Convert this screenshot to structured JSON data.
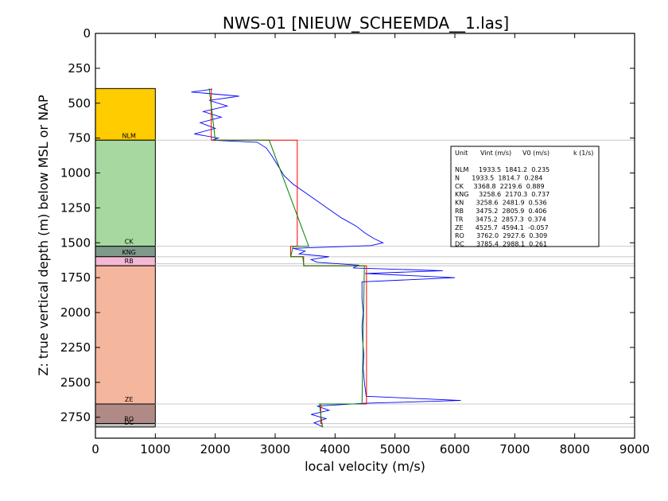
{
  "chart_data": {
    "type": "line",
    "title": "NWS-01 [NIEUW_SCHEEMDA__1.las]",
    "xlabel": "local velocity (m/s)",
    "ylabel": "Z: true vertical depth (m) below MSL or NAP",
    "xlim": [
      0,
      9000
    ],
    "ylim": [
      2900,
      0
    ],
    "x_ticks": [
      "0",
      "1000",
      "2000",
      "3000",
      "4000",
      "5000",
      "6000",
      "7000",
      "8000",
      "9000"
    ],
    "y_ticks": [
      "0",
      "250",
      "500",
      "750",
      "1000",
      "1250",
      "1500",
      "1750",
      "2000",
      "2250",
      "2500",
      "2750"
    ],
    "y_inverted": true,
    "grid": false,
    "strat_column": [
      {
        "code": "NLM",
        "top": 395,
        "base": 765,
        "color": "#ffcc00"
      },
      {
        "code": "CK",
        "top": 765,
        "base": 1525,
        "color": "#a6d8a0"
      },
      {
        "code": "KNG",
        "top": 1525,
        "base": 1600,
        "color": "#7f9a8b"
      },
      {
        "code": "RB",
        "top": 1600,
        "base": 1665,
        "color": "#f4b8d4"
      },
      {
        "code": "ZE",
        "top": 1665,
        "base": 2655,
        "color": "#f5b69e"
      },
      {
        "code": "RO",
        "top": 2655,
        "base": 2795,
        "color": "#b08a84"
      },
      {
        "code": "DC",
        "top": 2795,
        "base": 2820,
        "color": "#c0c0c0"
      }
    ],
    "horizon_lines": [
      765,
      1525,
      1600,
      1650,
      1665,
      2655,
      2795,
      2820
    ],
    "series": [
      {
        "color": "#0000ff",
        "kind": "log",
        "points": [
          [
            1950,
            400
          ],
          [
            1600,
            420
          ],
          [
            2400,
            450
          ],
          [
            1900,
            480
          ],
          [
            2200,
            520
          ],
          [
            1800,
            560
          ],
          [
            2100,
            600
          ],
          [
            1750,
            640
          ],
          [
            2000,
            680
          ],
          [
            1650,
            720
          ],
          [
            2050,
            750
          ],
          [
            1950,
            765
          ],
          [
            2700,
            780
          ],
          [
            2850,
            820
          ],
          [
            2950,
            880
          ],
          [
            3050,
            950
          ],
          [
            3150,
            1020
          ],
          [
            3300,
            1080
          ],
          [
            3500,
            1140
          ],
          [
            3700,
            1200
          ],
          [
            3900,
            1260
          ],
          [
            4100,
            1320
          ],
          [
            4350,
            1380
          ],
          [
            4500,
            1430
          ],
          [
            4650,
            1470
          ],
          [
            4800,
            1500
          ],
          [
            4600,
            1520
          ],
          [
            3300,
            1540
          ],
          [
            3500,
            1560
          ],
          [
            3400,
            1580
          ],
          [
            3900,
            1600
          ],
          [
            3600,
            1620
          ],
          [
            3700,
            1640
          ],
          [
            4400,
            1660
          ],
          [
            4300,
            1680
          ],
          [
            5800,
            1700
          ],
          [
            4500,
            1720
          ],
          [
            6000,
            1750
          ],
          [
            4450,
            1780
          ],
          [
            4450,
            1900
          ],
          [
            4470,
            2000
          ],
          [
            4450,
            2100
          ],
          [
            4460,
            2200
          ],
          [
            4480,
            2300
          ],
          [
            4470,
            2400
          ],
          [
            4490,
            2500
          ],
          [
            4520,
            2600
          ],
          [
            6100,
            2630
          ],
          [
            4500,
            2650
          ],
          [
            3700,
            2670
          ],
          [
            3900,
            2700
          ],
          [
            3600,
            2730
          ],
          [
            3850,
            2760
          ],
          [
            3650,
            2790
          ],
          [
            3800,
            2820
          ]
        ]
      },
      {
        "color": "#ff0000",
        "kind": "Vint",
        "points": [
          [
            1933.5,
            395
          ],
          [
            1933.5,
            765
          ],
          [
            3368.8,
            765
          ],
          [
            3368.8,
            1525
          ],
          [
            3258.6,
            1525
          ],
          [
            3258.6,
            1600
          ],
          [
            3475.2,
            1600
          ],
          [
            3475.2,
            1665
          ],
          [
            4525.7,
            1665
          ],
          [
            4525.7,
            2655
          ],
          [
            3762.0,
            2655
          ],
          [
            3762.0,
            2795
          ],
          [
            3785.4,
            2795
          ],
          [
            3785.4,
            2820
          ]
        ]
      },
      {
        "color": "#008000",
        "kind": "V0+kz",
        "points": [
          [
            1900,
            395
          ],
          [
            2000,
            765
          ],
          [
            2900,
            765
          ],
          [
            3560,
            1525
          ],
          [
            3300,
            1525
          ],
          [
            3260,
            1600
          ],
          [
            3460,
            1600
          ],
          [
            3480,
            1665
          ],
          [
            4490,
            1665
          ],
          [
            4450,
            2655
          ],
          [
            3740,
            2655
          ],
          [
            3780,
            2795
          ],
          [
            3790,
            2820
          ]
        ]
      }
    ],
    "table": {
      "headers": [
        "Unit",
        "Vint (m/s)",
        "V0 (m/s)",
        "k (1/s)"
      ],
      "rows": [
        "NLM     1933.5  1841.2  0.235",
        "N      1933.5  1814.7  0.284",
        "CK     3368.8  2219.6  0.889",
        "KNG     3258.6  2170.3  0.737",
        "KN      3258.6  2481.9  0.536",
        "RB      3475.2  2805.9  0.406",
        "TR      3475.2  2857.3  0.374",
        "ZE      4525.7  4594.1  -0.057",
        "RO      3762.0  2927.6  0.309",
        "DC      3785.4  2988.1  0.261"
      ]
    }
  }
}
